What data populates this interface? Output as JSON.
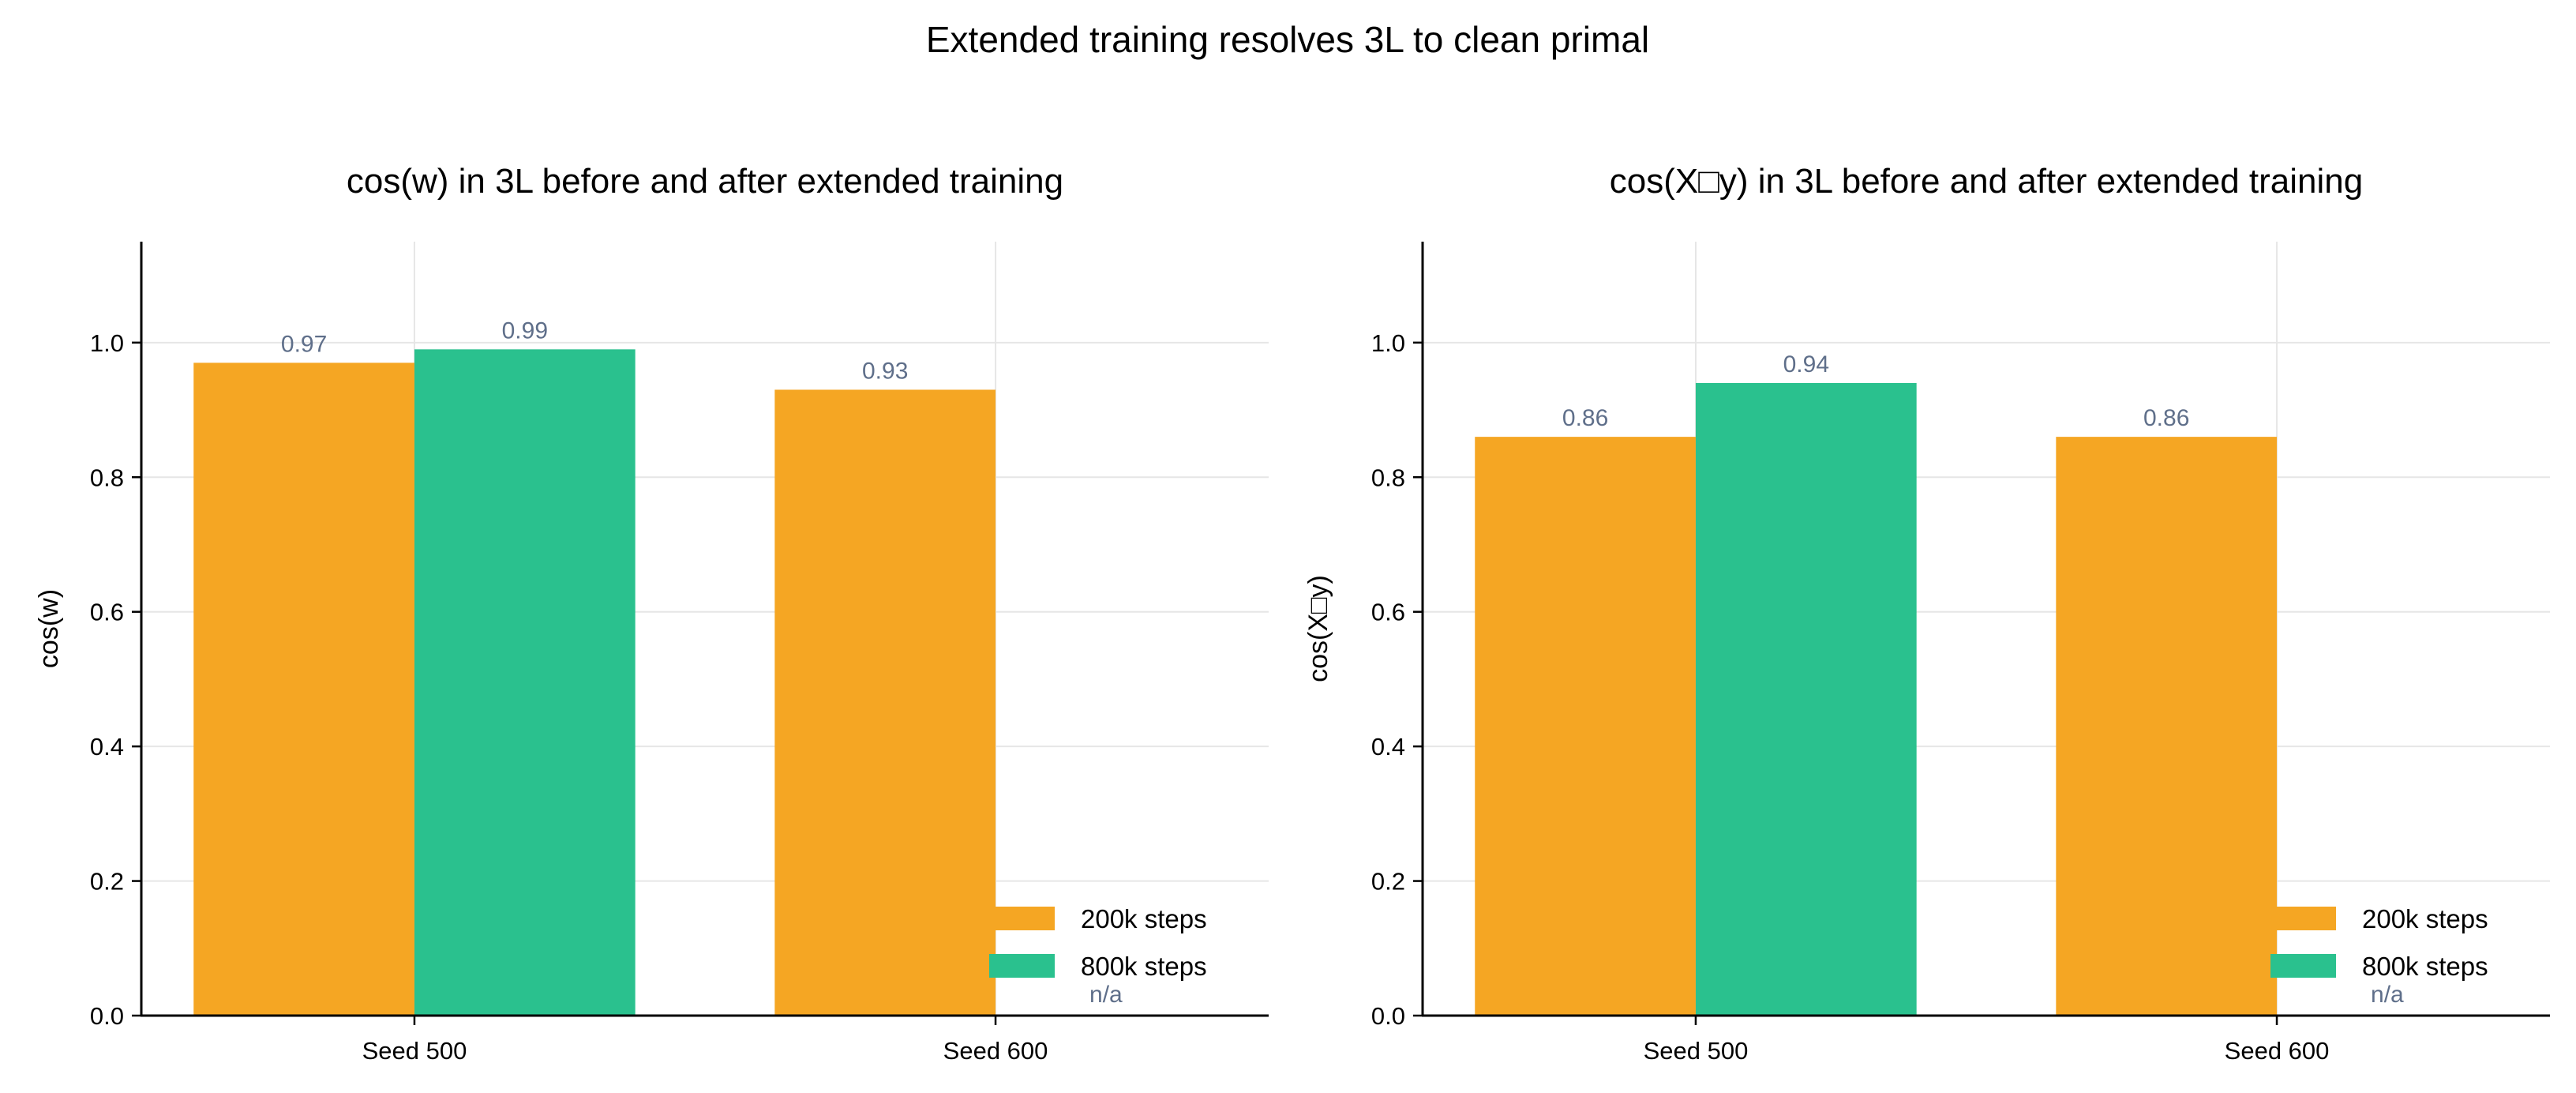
{
  "figure_title": "Extended training resolves 3L to clean primal",
  "colors": {
    "series_200k": "#F5A623",
    "series_800k": "#2AC18E",
    "value_label": "#5F6F8A",
    "grid": "#E6E6E6"
  },
  "chart_data": [
    {
      "type": "bar",
      "title": "cos(w) in 3L before and after extended training",
      "xlabel": "",
      "ylabel": "cos(w)",
      "categories": [
        "Seed 500",
        "Seed 600"
      ],
      "series": [
        {
          "name": "200k steps",
          "values": [
            0.97,
            0.93
          ],
          "labels": [
            "0.97",
            "0.93"
          ]
        },
        {
          "name": "800k steps",
          "values": [
            0.99,
            null
          ],
          "labels": [
            "0.99",
            "n/a"
          ]
        }
      ],
      "ylim": [
        0,
        1.15
      ],
      "yticks": [
        "0.0",
        "0.2",
        "0.4",
        "0.6",
        "0.8",
        "1.0"
      ],
      "grid": true,
      "legend": "lower-right"
    },
    {
      "type": "bar",
      "title": "cos(X□y) in 3L before and after extended training",
      "xlabel": "",
      "ylabel": "cos(X□y)",
      "categories": [
        "Seed 500",
        "Seed 600"
      ],
      "series": [
        {
          "name": "200k steps",
          "values": [
            0.86,
            0.86
          ],
          "labels": [
            "0.86",
            "0.86"
          ]
        },
        {
          "name": "800k steps",
          "values": [
            0.94,
            null
          ],
          "labels": [
            "0.94",
            "n/a"
          ]
        }
      ],
      "ylim": [
        0,
        1.15
      ],
      "yticks": [
        "0.0",
        "0.2",
        "0.4",
        "0.6",
        "0.8",
        "1.0"
      ],
      "grid": true,
      "legend": "lower-right"
    }
  ]
}
